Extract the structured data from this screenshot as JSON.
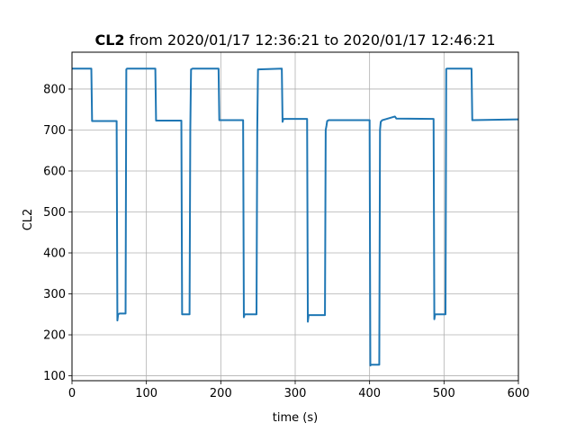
{
  "chart_data": {
    "type": "line",
    "title_bold": "CL2",
    "title_rest": " from 2020/01/17 12:36:21 to 2020/01/17 12:46:21",
    "xlabel": "time (s)",
    "ylabel": "CL2",
    "xlim": [
      0,
      600
    ],
    "ylim": [
      88,
      890
    ],
    "grid": true,
    "xticks": [
      0,
      100,
      200,
      300,
      400,
      500,
      600
    ],
    "yticks": [
      100,
      200,
      300,
      400,
      500,
      600,
      700,
      800
    ],
    "series": [
      {
        "color": "#1f77b4",
        "x": [
          0,
          26,
          27,
          60,
          61,
          62,
          64,
          72,
          73,
          74,
          112,
          113,
          147,
          148,
          158,
          159,
          160,
          162,
          197,
          198,
          230,
          231,
          232,
          233,
          248,
          249,
          250,
          282,
          283,
          284,
          316,
          317,
          318,
          320,
          340,
          341,
          342,
          343,
          345,
          400,
          401,
          402,
          413,
          414,
          415,
          417,
          434,
          436,
          486,
          487,
          488,
          490,
          502,
          503,
          504,
          537,
          538,
          600
        ],
        "y": [
          850,
          850,
          722,
          722,
          235,
          250,
          252,
          252,
          848,
          850,
          850,
          723,
          723,
          250,
          250,
          700,
          848,
          850,
          850,
          724,
          724,
          243,
          250,
          250,
          250,
          700,
          848,
          850,
          720,
          727,
          727,
          232,
          248,
          248,
          248,
          700,
          710,
          722,
          724,
          724,
          125,
          127,
          127,
          700,
          720,
          724,
          733,
          728,
          727,
          238,
          250,
          250,
          250,
          849,
          850,
          850,
          724,
          726
        ]
      }
    ]
  }
}
